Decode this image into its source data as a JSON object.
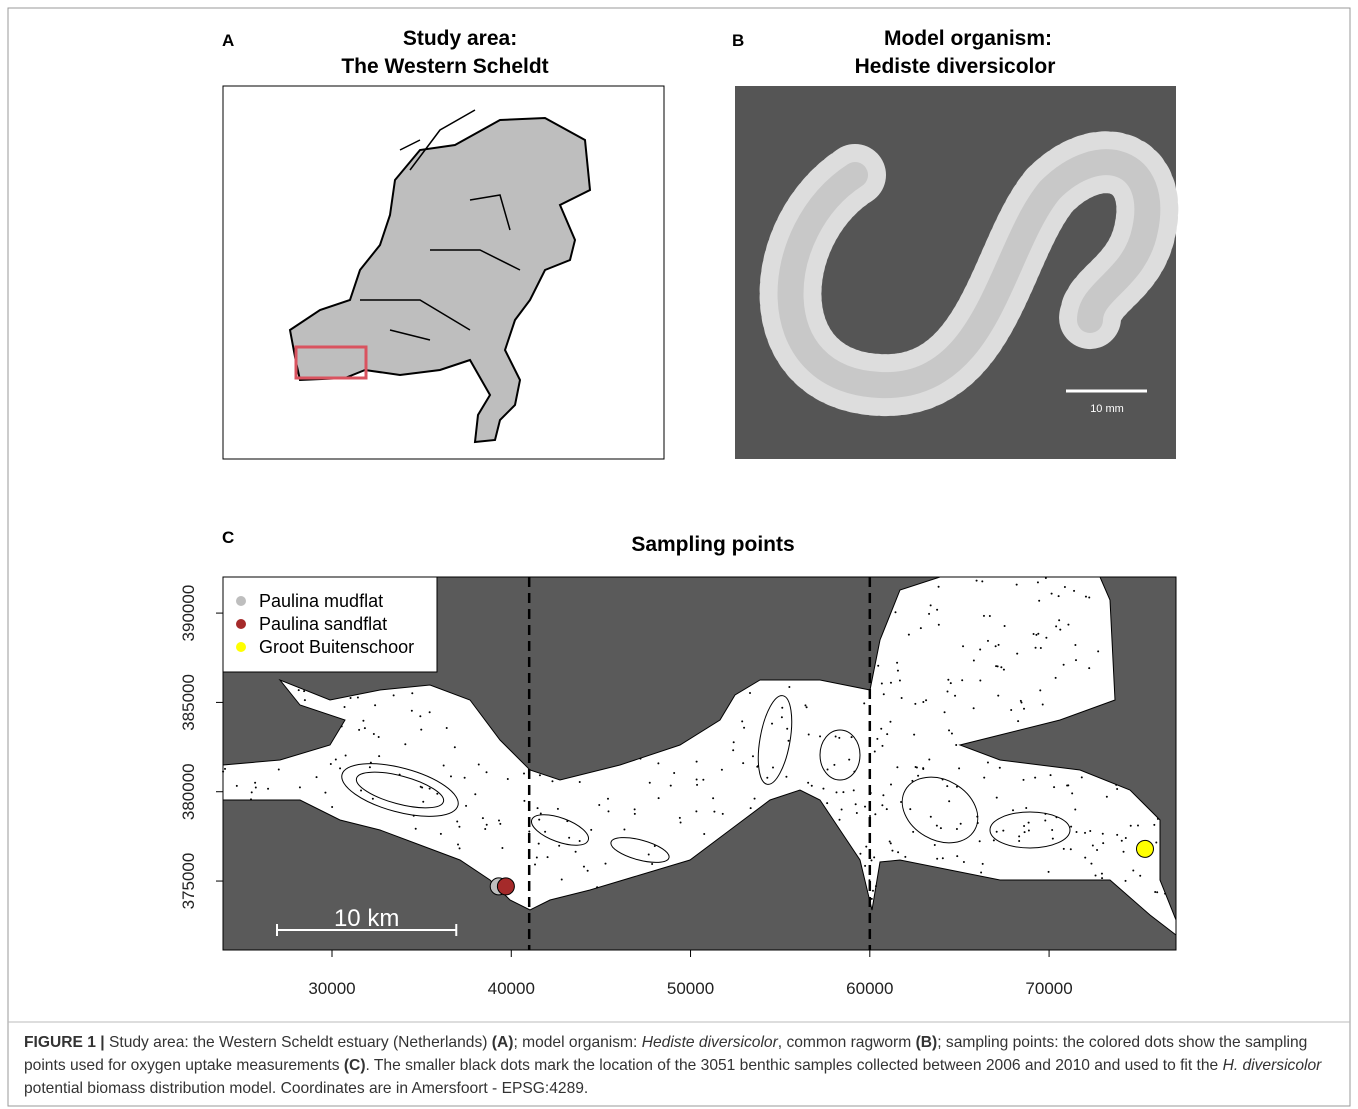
{
  "panels": {
    "a": {
      "letter": "A",
      "title": [
        "Study area:",
        "The Western Scheldt"
      ]
    },
    "b": {
      "letter": "B",
      "title": [
        "Model organism:",
        "Hediste diversicolor"
      ],
      "scale_label": "10 mm"
    }
  },
  "chart_data": {
    "type": "scatter",
    "letter": "C",
    "title": "Sampling points",
    "series": [
      {
        "name": "Paulina mudflat",
        "color": "#bebebe",
        "x": [
          39300
        ],
        "values": [
          374700
        ]
      },
      {
        "name": "Paulina sandflat",
        "color": "#a52a2a",
        "x": [
          39700
        ],
        "values": [
          374700
        ]
      },
      {
        "name": "Groot Buitenschoor",
        "color": "#ffff00",
        "x": [
          75350
        ],
        "values": [
          376800
        ]
      }
    ],
    "xlim": [
      23920,
      77080
    ],
    "ylim": [
      371140,
      392020
    ],
    "xticks": [
      30000,
      40000,
      50000,
      60000,
      70000
    ],
    "yticks": [
      375000,
      380000,
      385000,
      390000
    ],
    "reference_lines": [
      41000,
      60000
    ],
    "scale_bar": {
      "label": "10 km",
      "length": 10000
    },
    "legend": "top-left"
  },
  "caption": [
    {
      "text": "FIGURE 1 |",
      "style": "bold"
    },
    {
      "text": " Study area: the Western Scheldt estuary (Netherlands) ",
      "style": "normal"
    },
    {
      "text": "(A)",
      "style": "bold"
    },
    {
      "text": "; model organism: ",
      "style": "normal"
    },
    {
      "text": "Hediste diversicolor",
      "style": "italic"
    },
    {
      "text": ", common ragworm ",
      "style": "normal"
    },
    {
      "text": "(B)",
      "style": "bold"
    },
    {
      "text": "; sampling points: the colored dots show the sampling points used for oxygen uptake measurements ",
      "style": "normal"
    },
    {
      "text": "(C)",
      "style": "bold"
    },
    {
      "text": ". The smaller black dots mark the location of the 3051 benthic samples collected between 2006 and 2010 and used to fit the ",
      "style": "normal"
    },
    {
      "text": "H. diversicolor",
      "style": "italic"
    },
    {
      "text": " potential biomass distribution model. Coordinates are in Amersfoort - EPSG:4289.",
      "style": "normal"
    }
  ]
}
